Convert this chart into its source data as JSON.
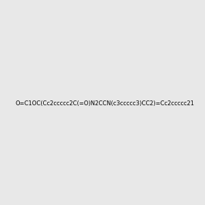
{
  "smiles": "O=C1OC(Cc2ccccc2C(=O)N2CCN(c3ccccc3)CC2)=Cc2ccccc21",
  "title": "",
  "background_color": "#e8e8e8",
  "bond_color": "#000000",
  "atom_colors": {
    "O": "#ff0000",
    "N": "#0000ff"
  },
  "figsize": [
    3.0,
    3.0
  ],
  "dpi": 100
}
